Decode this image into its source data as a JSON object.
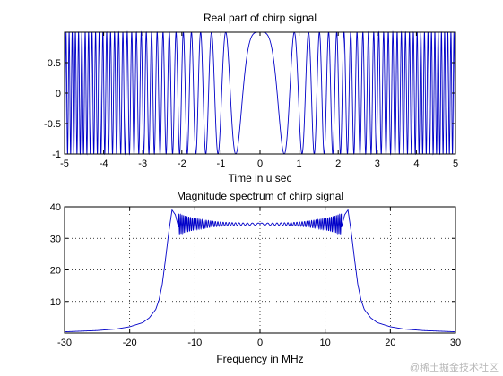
{
  "chart_data": [
    {
      "type": "line",
      "title": "Real part of chirp signal",
      "xlabel": "Time in u sec",
      "ylabel": "",
      "xlim": [
        -5,
        5
      ],
      "ylim": [
        -1,
        1
      ],
      "xticks": [
        -5,
        -4,
        -3,
        -2,
        -1,
        0,
        1,
        2,
        3,
        4,
        5
      ],
      "yticks": [
        -1,
        -0.5,
        0,
        0.5
      ],
      "grid": false,
      "line_color": "#0000c8",
      "series": [
        {
          "function": "cos(pi*k*t^2)",
          "k": 2.6,
          "t_range": [
            -5,
            5
          ]
        }
      ]
    },
    {
      "type": "line",
      "title": "Magnitude spectrum of chirp signal",
      "xlabel": "Frequency in MHz",
      "ylabel": "",
      "xlim": [
        -30,
        30
      ],
      "ylim": [
        0,
        40
      ],
      "xticks": [
        -30,
        -20,
        -10,
        0,
        10,
        20,
        30
      ],
      "yticks": [
        10,
        20,
        30,
        40
      ],
      "grid": true,
      "line_color": "#0000c8",
      "series": [
        {
          "x": [
            -30,
            -25,
            -22,
            -20,
            -18,
            -17,
            -16,
            -15.5,
            -15,
            -14.5,
            -14,
            -13.5,
            -13,
            -12.5,
            -12,
            -11,
            -10,
            -5,
            0,
            5,
            10,
            11,
            12,
            12.5,
            13,
            13.5,
            14,
            14.5,
            15,
            15.5,
            16,
            17,
            18,
            20,
            22,
            25,
            30
          ],
          "y": [
            0.4,
            0.8,
            1.3,
            2.0,
            3.3,
            4.8,
            7.5,
            10.5,
            15.5,
            23.5,
            32.0,
            39.0,
            37.5,
            33.5,
            36.5,
            34.0,
            35.0,
            34.4,
            34.6,
            34.4,
            35.0,
            34.0,
            36.5,
            33.5,
            37.5,
            39.0,
            32.0,
            23.5,
            15.5,
            10.5,
            7.5,
            4.8,
            3.3,
            2.0,
            1.3,
            0.8,
            0.4
          ]
        }
      ]
    }
  ],
  "watermark": "@稀土掘金技术社区"
}
